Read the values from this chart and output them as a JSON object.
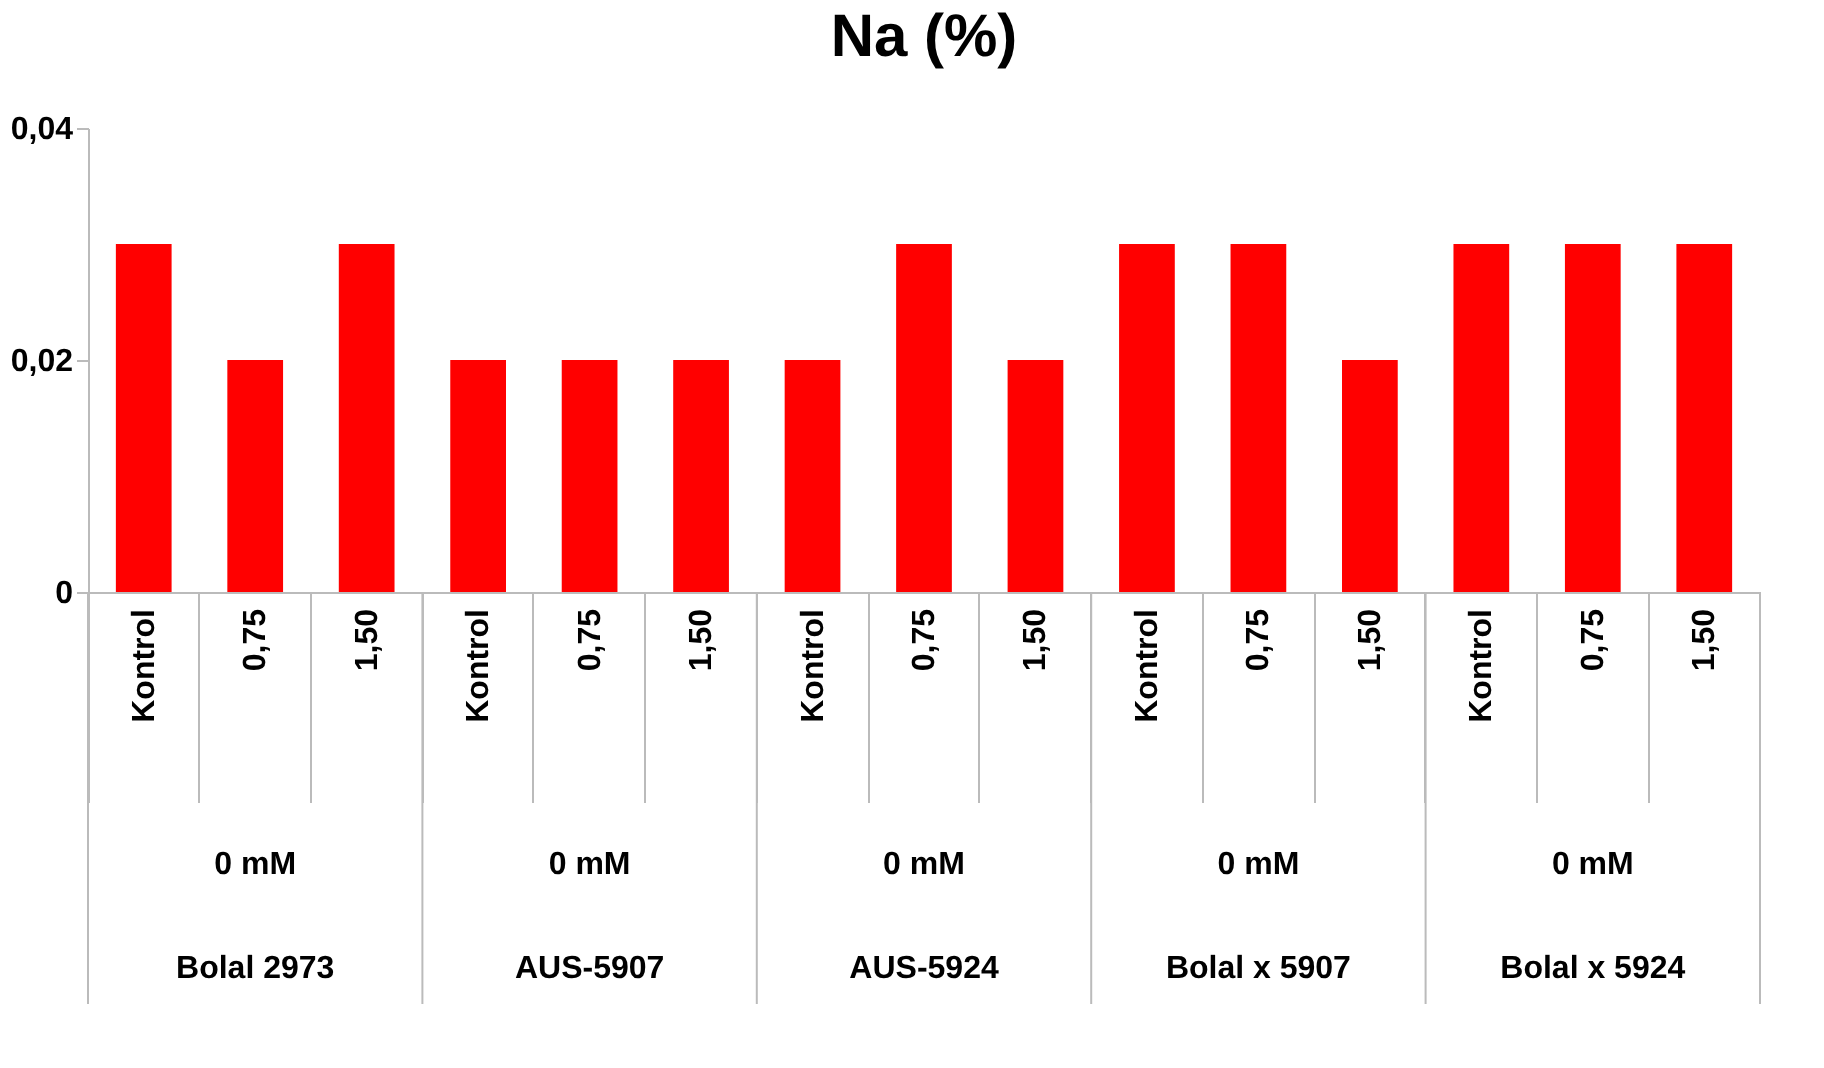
{
  "chart_data": {
    "type": "bar",
    "title": "Na (%)",
    "categories": [
      "Kontrol",
      "0,75",
      "1,50",
      "Kontrol",
      "0,75",
      "1,50",
      "Kontrol",
      "0,75",
      "1,50",
      "Kontrol",
      "0,75",
      "1,50",
      "Kontrol",
      "0,75",
      "1,50"
    ],
    "values": [
      0.03,
      0.02,
      0.03,
      0.02,
      0.02,
      0.02,
      0.02,
      0.03,
      0.02,
      0.03,
      0.03,
      0.02,
      0.03,
      0.03,
      0.03
    ],
    "color": "#ff0000",
    "ylim": [
      0,
      0.04
    ],
    "yticks": [
      0,
      {
        "value": 0.02,
        "label": "0,02"
      },
      {
        "value": 0.04,
        "label": "0,04"
      }
    ],
    "grid": false,
    "annotations": [
      "0 mM",
      "Bolal 2973",
      "0 mM",
      "AUS-5907",
      "0 mM",
      "AUS-5924",
      "0 mM",
      "Bolal x 5907",
      "0 mM",
      "Bolal x 5924"
    ]
  }
}
